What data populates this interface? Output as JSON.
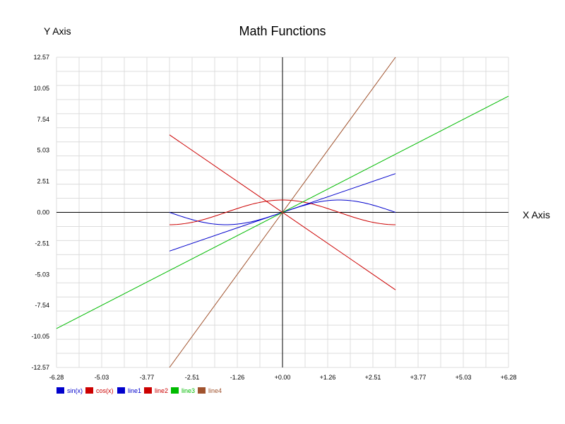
{
  "chart_data": {
    "type": "line",
    "title": "Math Functions",
    "xlabel": "X Axis",
    "ylabel": "Y Axis",
    "xlim": [
      -6.28,
      6.28
    ],
    "ylim": [
      -12.57,
      12.57
    ],
    "grid": true,
    "legend_position": "bottom-left",
    "x_tick_labels": [
      "-6.28",
      "-5.03",
      "-3.77",
      "-2.51",
      "-1.26",
      "+0.00",
      "+1.26",
      "+2.51",
      "+3.77",
      "+5.03",
      "+6.28"
    ],
    "y_tick_labels": [
      "12.57",
      "10.05",
      "7.54",
      "5.03",
      "2.51",
      "0.00",
      "-2.51",
      "-5.03",
      "-7.54",
      "-10.05",
      "-12.57"
    ],
    "series": [
      {
        "name": "sin(x)",
        "color": "#0000cc",
        "function": "sin",
        "x_range": [
          -3.14,
          3.14
        ]
      },
      {
        "name": "cos(x)",
        "color": "#cc0000",
        "function": "cos",
        "x_range": [
          -3.14,
          3.14
        ]
      },
      {
        "name": "line1",
        "color": "#0000cc",
        "x": [
          -3.14,
          3.14
        ],
        "y": [
          -3.14,
          3.14
        ]
      },
      {
        "name": "line2",
        "color": "#cc0000",
        "x": [
          -3.14,
          3.14
        ],
        "y": [
          6.28,
          -6.28
        ]
      },
      {
        "name": "line3",
        "color": "#00bb00",
        "x": [
          -6.28,
          6.28
        ],
        "y": [
          -9.42,
          9.42
        ]
      },
      {
        "name": "line4",
        "color": "#a0522d",
        "x": [
          -3.14,
          3.14
        ],
        "y": [
          -12.57,
          12.57
        ]
      }
    ],
    "legend_text_colors": [
      "#0000cc",
      "#cc0000",
      "#0000cc",
      "#cc0000",
      "#00bb00",
      "#a0522d"
    ]
  }
}
